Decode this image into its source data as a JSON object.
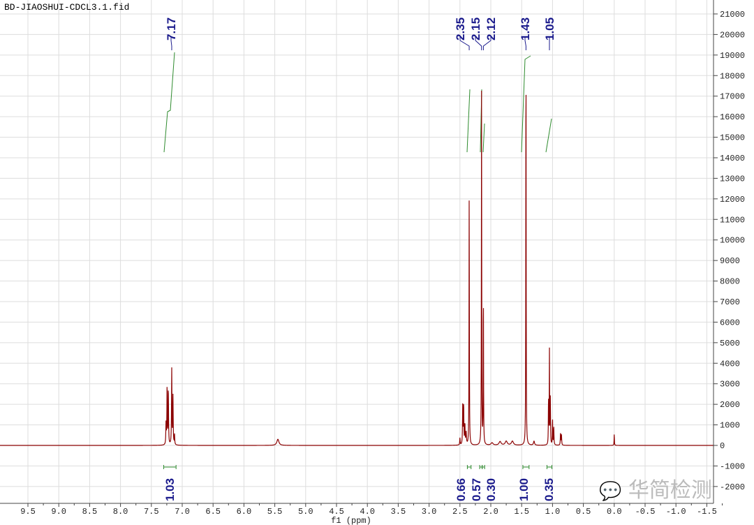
{
  "title": "BD-JIAOSHUI-CDCL3.1.fid",
  "watermark": "华简检测",
  "chart_data": {
    "type": "line",
    "title": "BD-JIAOSHUI-CDCL3.1.fid",
    "xlabel": "f1 (ppm)",
    "ylabel": "",
    "xlim": [
      9.7,
      -1.6
    ],
    "ylim": [
      -2800,
      21500
    ],
    "x_ticks": [
      9.5,
      9.0,
      8.5,
      8.0,
      7.5,
      7.0,
      6.5,
      6.0,
      5.5,
      5.0,
      4.5,
      4.0,
      3.5,
      3.0,
      2.5,
      2.0,
      1.5,
      1.0,
      0.5,
      0.0,
      -0.5,
      -1.0,
      -1.5
    ],
    "y_ticks": [
      21000,
      20000,
      19000,
      18000,
      17000,
      16000,
      15000,
      14000,
      13000,
      12000,
      11000,
      10000,
      9000,
      8000,
      7000,
      6000,
      5000,
      4000,
      3000,
      2000,
      1000,
      0,
      -1000,
      -2000
    ],
    "grid": true,
    "y_axis_position": "right",
    "series_color": "#8b0000",
    "label_color": "#1a1a8c",
    "integral_color": "#2e8b2e",
    "peaks": [
      {
        "ppm": 7.262,
        "height": 1100,
        "width": 0.004
      },
      {
        "ppm": 7.245,
        "height": 2850,
        "width": 0.004
      },
      {
        "ppm": 7.225,
        "height": 2750,
        "width": 0.004
      },
      {
        "ppm": 7.17,
        "height": 3700,
        "width": 0.004
      },
      {
        "ppm": 7.15,
        "height": 2350,
        "width": 0.004
      },
      {
        "ppm": 7.125,
        "height": 500,
        "width": 0.004
      },
      {
        "ppm": 5.45,
        "height": 300,
        "width": 0.02
      },
      {
        "ppm": 2.5,
        "height": 350,
        "width": 0.004
      },
      {
        "ppm": 2.455,
        "height": 1900,
        "width": 0.004
      },
      {
        "ppm": 2.44,
        "height": 1950,
        "width": 0.004
      },
      {
        "ppm": 2.42,
        "height": 1000,
        "width": 0.004
      },
      {
        "ppm": 2.4,
        "height": 600,
        "width": 0.006
      },
      {
        "ppm": 2.35,
        "height": 12500,
        "width": 0.003
      },
      {
        "ppm": 2.15,
        "height": 17200,
        "width": 0.003
      },
      {
        "ppm": 2.12,
        "height": 7600,
        "width": 0.003
      },
      {
        "ppm": 1.98,
        "height": 120,
        "width": 0.02
      },
      {
        "ppm": 1.85,
        "height": 180,
        "width": 0.02
      },
      {
        "ppm": 1.75,
        "height": 200,
        "width": 0.02
      },
      {
        "ppm": 1.65,
        "height": 200,
        "width": 0.02
      },
      {
        "ppm": 1.43,
        "height": 20100,
        "width": 0.003
      },
      {
        "ppm": 1.3,
        "height": 200,
        "width": 0.01
      },
      {
        "ppm": 1.065,
        "height": 2300,
        "width": 0.003
      },
      {
        "ppm": 1.05,
        "height": 4600,
        "width": 0.003
      },
      {
        "ppm": 1.035,
        "height": 2300,
        "width": 0.003
      },
      {
        "ppm": 1.0,
        "height": 1350,
        "width": 0.003
      },
      {
        "ppm": 0.98,
        "height": 900,
        "width": 0.004
      },
      {
        "ppm": 0.87,
        "height": 600,
        "width": 0.004
      },
      {
        "ppm": 0.855,
        "height": 500,
        "width": 0.004
      },
      {
        "ppm": 0.0,
        "height": 550,
        "width": 0.003
      }
    ],
    "peak_labels": [
      "7.17",
      "2.35",
      "2.15",
      "2.12",
      "1.43",
      "1.05"
    ],
    "peak_label_ppm": [
      7.17,
      2.35,
      2.15,
      2.12,
      1.43,
      1.05
    ],
    "integrals": [
      {
        "from": 7.3,
        "to": 7.1,
        "value": "1.03"
      },
      {
        "from": 2.38,
        "to": 2.32,
        "value": "0.66"
      },
      {
        "from": 2.18,
        "to": 2.14,
        "value": "0.57"
      },
      {
        "from": 2.14,
        "to": 2.1,
        "value": "0.30"
      },
      {
        "from": 1.48,
        "to": 1.38,
        "value": "1.00"
      },
      {
        "from": 1.09,
        "to": 1.01,
        "value": "0.35"
      }
    ]
  }
}
